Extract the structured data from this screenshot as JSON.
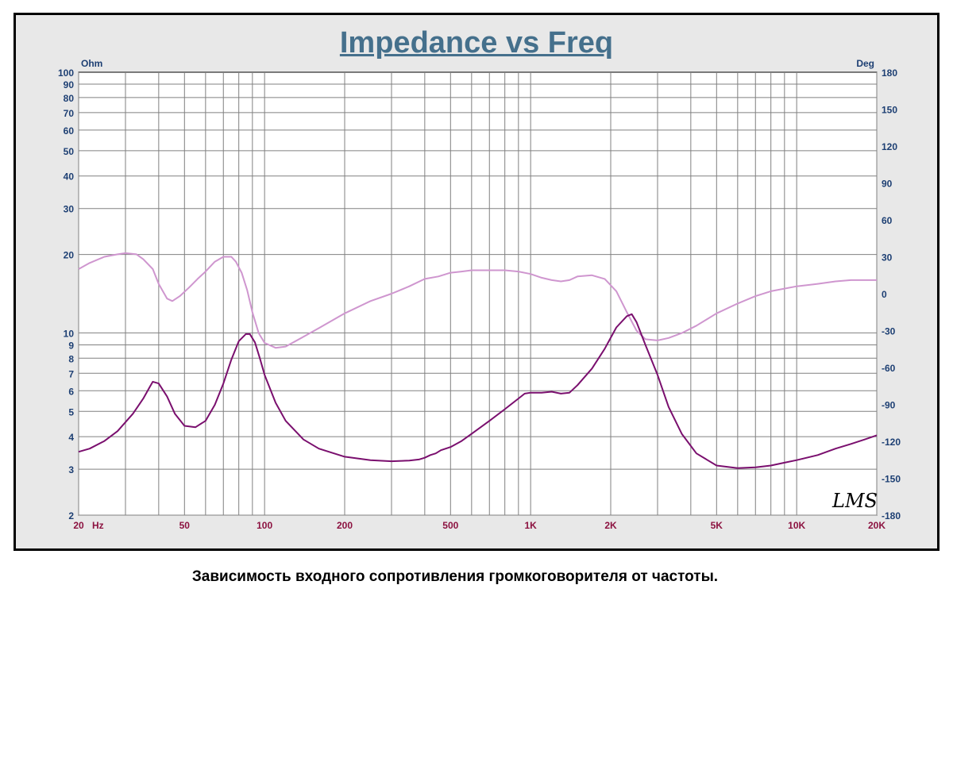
{
  "chart_data": {
    "type": "line",
    "title": "Impedance vs Freq",
    "x_scale": "log",
    "y_scale_left": "log",
    "xlim": [
      20,
      20000
    ],
    "ylim_left": [
      2,
      100
    ],
    "ylim_right": [
      -180,
      180
    ],
    "left_unit": "Ohm",
    "right_unit": "Deg",
    "grid": true,
    "x_ticks": [
      {
        "value": 20,
        "label": "20"
      },
      {
        "value": 50,
        "label": "50"
      },
      {
        "value": 100,
        "label": "100"
      },
      {
        "value": 200,
        "label": "200"
      },
      {
        "value": 500,
        "label": "500"
      },
      {
        "value": 1000,
        "label": "1K"
      },
      {
        "value": 2000,
        "label": "2K"
      },
      {
        "value": 5000,
        "label": "5K"
      },
      {
        "value": 10000,
        "label": "10K"
      },
      {
        "value": 20000,
        "label": "20K"
      }
    ],
    "x_unit_label": "Hz",
    "left_ticks": [
      {
        "value": 2,
        "label": "2"
      },
      {
        "value": 3,
        "label": "3"
      },
      {
        "value": 4,
        "label": "4"
      },
      {
        "value": 5,
        "label": "5"
      },
      {
        "value": 6,
        "label": "6"
      },
      {
        "value": 7,
        "label": "7"
      },
      {
        "value": 8,
        "label": "8"
      },
      {
        "value": 9,
        "label": "9"
      },
      {
        "value": 10,
        "label": "10"
      },
      {
        "value": 20,
        "label": "20"
      },
      {
        "value": 30,
        "label": "30"
      },
      {
        "value": 40,
        "label": "40"
      },
      {
        "value": 50,
        "label": "50"
      },
      {
        "value": 60,
        "label": "60"
      },
      {
        "value": 70,
        "label": "70"
      },
      {
        "value": 80,
        "label": "80"
      },
      {
        "value": 90,
        "label": "90"
      },
      {
        "value": 100,
        "label": "100"
      }
    ],
    "right_ticks": [
      {
        "value": 180,
        "label": "180"
      },
      {
        "value": 150,
        "label": "150"
      },
      {
        "value": 120,
        "label": "120"
      },
      {
        "value": 90,
        "label": "90"
      },
      {
        "value": 60,
        "label": "60"
      },
      {
        "value": 30,
        "label": "30"
      },
      {
        "value": 0,
        "label": "0"
      },
      {
        "value": -30,
        "label": "-30"
      },
      {
        "value": -60,
        "label": "-60"
      },
      {
        "value": -90,
        "label": "-90"
      },
      {
        "value": -120,
        "label": "-120"
      },
      {
        "value": -150,
        "label": "-150"
      },
      {
        "value": -180,
        "label": "-180"
      }
    ],
    "watermark": "LMS",
    "series": [
      {
        "axis": "left",
        "color": "#7a0f6e",
        "x": [
          20,
          22,
          25,
          28,
          32,
          35,
          37,
          38,
          40,
          43,
          46,
          50,
          55,
          60,
          65,
          70,
          75,
          80,
          85,
          88,
          92,
          96,
          100,
          110,
          120,
          140,
          160,
          200,
          250,
          300,
          350,
          380,
          400,
          420,
          440,
          460,
          500,
          550,
          600,
          700,
          800,
          900,
          950,
          1000,
          1100,
          1200,
          1300,
          1400,
          1500,
          1700,
          1900,
          2100,
          2300,
          2400,
          2500,
          2700,
          3000,
          3300,
          3700,
          4200,
          5000,
          6000,
          7000,
          8000,
          9000,
          10000,
          12000,
          14000,
          16000,
          18000,
          20000
        ],
        "y": [
          3.5,
          3.6,
          3.85,
          4.2,
          4.9,
          5.6,
          6.2,
          6.5,
          6.4,
          5.7,
          4.9,
          4.4,
          4.35,
          4.6,
          5.3,
          6.4,
          7.9,
          9.3,
          9.9,
          9.9,
          9.2,
          8.0,
          6.9,
          5.4,
          4.6,
          3.9,
          3.6,
          3.35,
          3.25,
          3.22,
          3.24,
          3.27,
          3.32,
          3.4,
          3.45,
          3.55,
          3.65,
          3.85,
          4.1,
          4.6,
          5.1,
          5.6,
          5.85,
          5.9,
          5.9,
          5.95,
          5.85,
          5.9,
          6.3,
          7.3,
          8.7,
          10.5,
          11.6,
          11.8,
          11.0,
          9.0,
          6.9,
          5.2,
          4.1,
          3.45,
          3.1,
          3.03,
          3.05,
          3.1,
          3.18,
          3.25,
          3.4,
          3.6,
          3.75,
          3.9,
          4.05
        ]
      },
      {
        "axis": "right",
        "color": "#cf96cf",
        "x": [
          20,
          22,
          25,
          28,
          30,
          33,
          35,
          38,
          40,
          43,
          45,
          48,
          52,
          56,
          60,
          65,
          70,
          75,
          78,
          82,
          86,
          90,
          95,
          100,
          110,
          120,
          140,
          160,
          200,
          250,
          300,
          350,
          400,
          450,
          500,
          550,
          600,
          700,
          800,
          900,
          1000,
          1100,
          1200,
          1300,
          1400,
          1500,
          1700,
          1900,
          2100,
          2300,
          2500,
          2700,
          3000,
          3300,
          3700,
          4200,
          5000,
          6000,
          7000,
          8000,
          10000,
          12000,
          14000,
          16000,
          18000,
          20000
        ],
        "y": [
          20,
          25,
          30,
          32,
          33,
          32,
          28,
          20,
          8,
          -4,
          -6,
          -2,
          5,
          12,
          18,
          26,
          30,
          30,
          26,
          17,
          3,
          -15,
          -32,
          -40,
          -44,
          -43,
          -35,
          -28,
          -16,
          -6,
          0,
          6,
          12,
          14,
          17,
          18,
          19,
          19,
          19,
          18,
          16,
          13,
          11,
          10,
          11,
          14,
          15,
          12,
          2,
          -15,
          -30,
          -37,
          -38,
          -36,
          -32,
          -26,
          -16,
          -8,
          -2,
          2,
          6,
          8,
          10,
          11,
          11,
          11
        ]
      }
    ]
  },
  "caption": "Зависимость входного сопротивления громкоговорителя от частоты."
}
